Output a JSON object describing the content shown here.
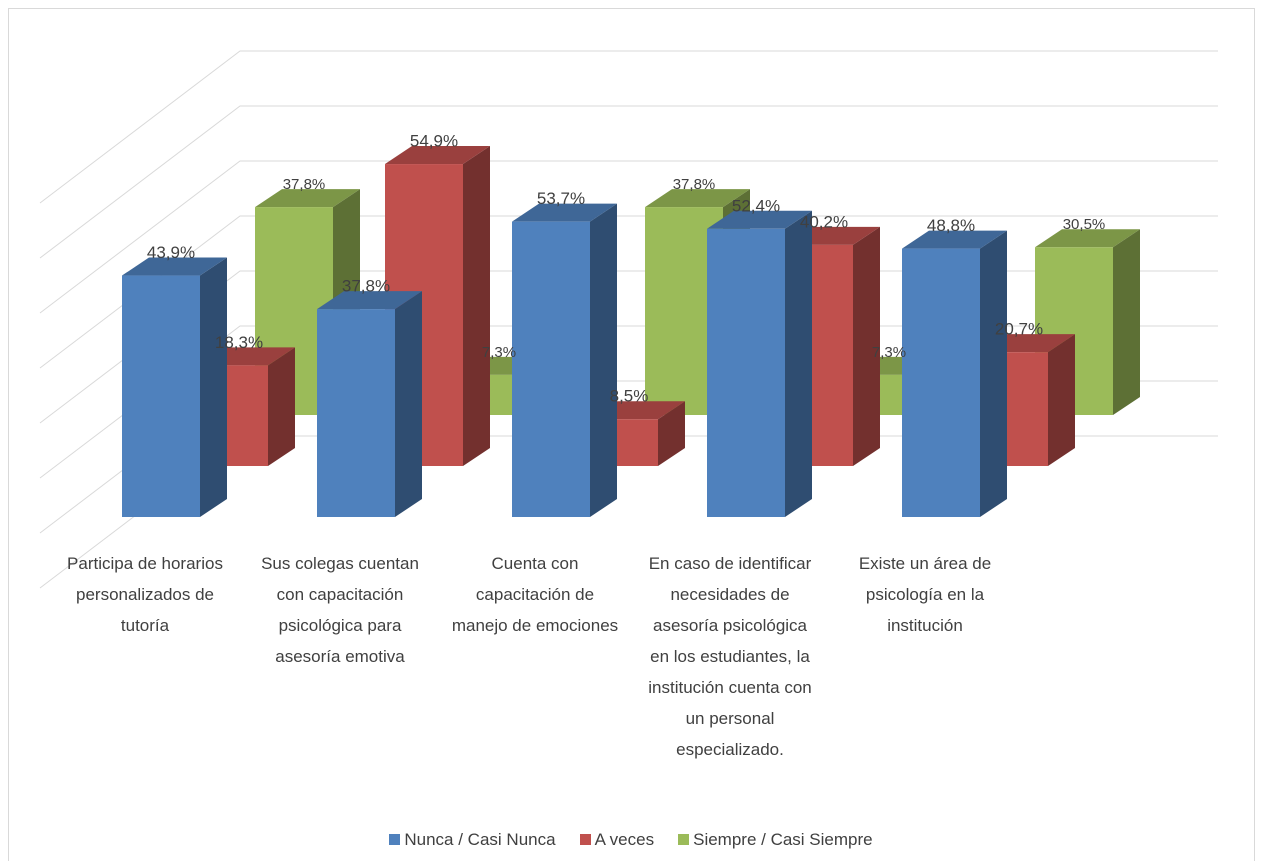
{
  "chart_data": {
    "type": "bar3d",
    "categories": [
      "Participa de horarios personalizados de tutoría",
      "Sus colegas cuentan con capacitación psicológica para asesoría emotiva",
      "Cuenta con capacitación de manejo de emociones",
      "En caso de identificar necesidades de asesoría psicológica en los estudiantes, la institución cuenta con un personal especializado.",
      "Existe un área de psicología en la institución"
    ],
    "series": [
      {
        "name": "Nunca / Casi Nunca",
        "color": "#4f81bd",
        "values": [
          43.9,
          37.8,
          53.7,
          52.4,
          48.8
        ],
        "value_labels": [
          "43,9%",
          "37,8%",
          "53,7%",
          "52,4%",
          "48,8%"
        ]
      },
      {
        "name": "A veces",
        "color": "#c0504d",
        "values": [
          18.3,
          54.9,
          8.5,
          40.2,
          20.7
        ],
        "value_labels": [
          "18,3%",
          "54,9%",
          "8,5%",
          "40,2%",
          "20,7%"
        ]
      },
      {
        "name": "Siempre / Casi Siempre",
        "color": "#9bbb59",
        "values": [
          37.8,
          7.3,
          37.8,
          7.3,
          30.5
        ],
        "value_labels": [
          "37,8%",
          "7,3%",
          "37,8%",
          "7,3%",
          "30,5%"
        ]
      }
    ],
    "ylim": [
      0,
      70
    ],
    "yticks": [
      0,
      10,
      20,
      30,
      40,
      50,
      60,
      70
    ],
    "grid": true
  }
}
